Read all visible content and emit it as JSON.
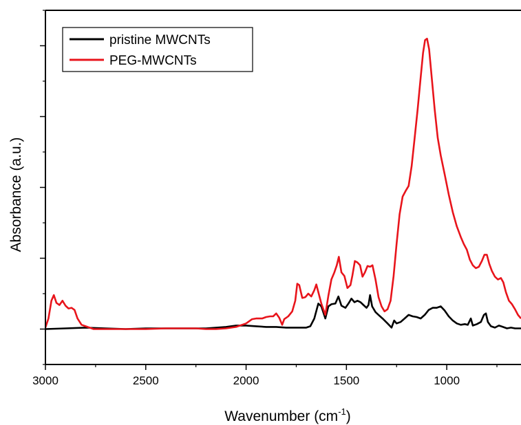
{
  "chart_data": {
    "type": "line",
    "title": "",
    "xlabel": "Wavenumber (cm",
    "xlabel_sup": "-1",
    "xlabel_close": ")",
    "ylabel": "Absorbance (a.u.)",
    "xlim": [
      3000,
      630
    ],
    "ylim": [
      -0.5,
      4.5
    ],
    "x_reversed": true,
    "y_tick_labels_shown": false,
    "x_ticks": [
      {
        "value": 3000,
        "label": "3000"
      },
      {
        "value": 2500,
        "label": "2500"
      },
      {
        "value": 2000,
        "label": "2000"
      },
      {
        "value": 1500,
        "label": "1500"
      },
      {
        "value": 1000,
        "label": "1000"
      }
    ],
    "legend_position": "top-left",
    "series": [
      {
        "name": "pristine MWCNTs",
        "color": "#000000",
        "points": [
          [
            3000,
            0.0
          ],
          [
            2900,
            0.01
          ],
          [
            2800,
            0.02
          ],
          [
            2700,
            0.01
          ],
          [
            2600,
            0.0
          ],
          [
            2500,
            0.01
          ],
          [
            2400,
            0.01
          ],
          [
            2300,
            0.01
          ],
          [
            2200,
            0.01
          ],
          [
            2100,
            0.03
          ],
          [
            2050,
            0.05
          ],
          [
            2000,
            0.05
          ],
          [
            1950,
            0.04
          ],
          [
            1900,
            0.03
          ],
          [
            1850,
            0.03
          ],
          [
            1800,
            0.02
          ],
          [
            1750,
            0.02
          ],
          [
            1700,
            0.02
          ],
          [
            1680,
            0.04
          ],
          [
            1660,
            0.15
          ],
          [
            1640,
            0.36
          ],
          [
            1625,
            0.32
          ],
          [
            1605,
            0.15
          ],
          [
            1590,
            0.32
          ],
          [
            1575,
            0.35
          ],
          [
            1555,
            0.36
          ],
          [
            1540,
            0.46
          ],
          [
            1525,
            0.33
          ],
          [
            1505,
            0.3
          ],
          [
            1490,
            0.36
          ],
          [
            1475,
            0.43
          ],
          [
            1460,
            0.38
          ],
          [
            1445,
            0.4
          ],
          [
            1430,
            0.38
          ],
          [
            1415,
            0.34
          ],
          [
            1400,
            0.3
          ],
          [
            1390,
            0.34
          ],
          [
            1382,
            0.48
          ],
          [
            1372,
            0.32
          ],
          [
            1355,
            0.24
          ],
          [
            1340,
            0.2
          ],
          [
            1320,
            0.15
          ],
          [
            1295,
            0.08
          ],
          [
            1275,
            0.02
          ],
          [
            1262,
            0.12
          ],
          [
            1250,
            0.08
          ],
          [
            1230,
            0.1
          ],
          [
            1210,
            0.15
          ],
          [
            1190,
            0.2
          ],
          [
            1170,
            0.18
          ],
          [
            1150,
            0.17
          ],
          [
            1130,
            0.15
          ],
          [
            1110,
            0.2
          ],
          [
            1090,
            0.27
          ],
          [
            1070,
            0.3
          ],
          [
            1050,
            0.3
          ],
          [
            1030,
            0.32
          ],
          [
            1010,
            0.26
          ],
          [
            990,
            0.18
          ],
          [
            970,
            0.12
          ],
          [
            950,
            0.08
          ],
          [
            930,
            0.06
          ],
          [
            910,
            0.07
          ],
          [
            895,
            0.06
          ],
          [
            880,
            0.15
          ],
          [
            870,
            0.05
          ],
          [
            850,
            0.07
          ],
          [
            830,
            0.1
          ],
          [
            815,
            0.2
          ],
          [
            805,
            0.22
          ],
          [
            795,
            0.1
          ],
          [
            780,
            0.04
          ],
          [
            760,
            0.02
          ],
          [
            740,
            0.05
          ],
          [
            720,
            0.03
          ],
          [
            700,
            0.01
          ],
          [
            680,
            0.02
          ],
          [
            660,
            0.01
          ],
          [
            630,
            0.01
          ]
        ]
      },
      {
        "name": "PEG-MWCNTs",
        "color": "#e8141b",
        "points": [
          [
            3000,
            0.02
          ],
          [
            2985,
            0.15
          ],
          [
            2970,
            0.4
          ],
          [
            2958,
            0.48
          ],
          [
            2945,
            0.37
          ],
          [
            2930,
            0.34
          ],
          [
            2915,
            0.4
          ],
          [
            2900,
            0.33
          ],
          [
            2885,
            0.29
          ],
          [
            2870,
            0.3
          ],
          [
            2855,
            0.27
          ],
          [
            2840,
            0.15
          ],
          [
            2820,
            0.06
          ],
          [
            2800,
            0.04
          ],
          [
            2780,
            0.02
          ],
          [
            2760,
            0.0
          ],
          [
            2700,
            0.0
          ],
          [
            2600,
            0.0
          ],
          [
            2500,
            0.0
          ],
          [
            2400,
            0.01
          ],
          [
            2300,
            0.01
          ],
          [
            2250,
            0.01
          ],
          [
            2200,
            0.0
          ],
          [
            2150,
            0.0
          ],
          [
            2100,
            0.01
          ],
          [
            2050,
            0.03
          ],
          [
            2000,
            0.08
          ],
          [
            1970,
            0.14
          ],
          [
            1950,
            0.15
          ],
          [
            1920,
            0.15
          ],
          [
            1900,
            0.17
          ],
          [
            1880,
            0.18
          ],
          [
            1865,
            0.18
          ],
          [
            1850,
            0.22
          ],
          [
            1835,
            0.16
          ],
          [
            1820,
            0.06
          ],
          [
            1810,
            0.14
          ],
          [
            1790,
            0.18
          ],
          [
            1770,
            0.25
          ],
          [
            1755,
            0.4
          ],
          [
            1745,
            0.64
          ],
          [
            1735,
            0.62
          ],
          [
            1720,
            0.44
          ],
          [
            1705,
            0.45
          ],
          [
            1690,
            0.5
          ],
          [
            1675,
            0.46
          ],
          [
            1660,
            0.55
          ],
          [
            1650,
            0.63
          ],
          [
            1638,
            0.5
          ],
          [
            1625,
            0.36
          ],
          [
            1605,
            0.2
          ],
          [
            1590,
            0.47
          ],
          [
            1575,
            0.7
          ],
          [
            1560,
            0.8
          ],
          [
            1548,
            0.9
          ],
          [
            1538,
            1.02
          ],
          [
            1525,
            0.8
          ],
          [
            1510,
            0.75
          ],
          [
            1495,
            0.58
          ],
          [
            1480,
            0.62
          ],
          [
            1470,
            0.76
          ],
          [
            1458,
            0.96
          ],
          [
            1445,
            0.94
          ],
          [
            1432,
            0.9
          ],
          [
            1420,
            0.74
          ],
          [
            1408,
            0.8
          ],
          [
            1395,
            0.89
          ],
          [
            1382,
            0.88
          ],
          [
            1370,
            0.9
          ],
          [
            1355,
            0.7
          ],
          [
            1340,
            0.45
          ],
          [
            1325,
            0.32
          ],
          [
            1310,
            0.25
          ],
          [
            1295,
            0.28
          ],
          [
            1280,
            0.4
          ],
          [
            1265,
            0.75
          ],
          [
            1250,
            1.2
          ],
          [
            1235,
            1.62
          ],
          [
            1220,
            1.87
          ],
          [
            1205,
            1.95
          ],
          [
            1190,
            2.02
          ],
          [
            1175,
            2.3
          ],
          [
            1160,
            2.7
          ],
          [
            1145,
            3.1
          ],
          [
            1130,
            3.55
          ],
          [
            1118,
            3.9
          ],
          [
            1108,
            4.08
          ],
          [
            1098,
            4.1
          ],
          [
            1088,
            3.95
          ],
          [
            1075,
            3.55
          ],
          [
            1060,
            3.1
          ],
          [
            1045,
            2.7
          ],
          [
            1030,
            2.45
          ],
          [
            1010,
            2.18
          ],
          [
            990,
            1.9
          ],
          [
            970,
            1.65
          ],
          [
            950,
            1.45
          ],
          [
            930,
            1.3
          ],
          [
            915,
            1.2
          ],
          [
            900,
            1.12
          ],
          [
            885,
            0.98
          ],
          [
            870,
            0.9
          ],
          [
            855,
            0.86
          ],
          [
            840,
            0.88
          ],
          [
            825,
            0.96
          ],
          [
            812,
            1.05
          ],
          [
            800,
            1.05
          ],
          [
            788,
            0.92
          ],
          [
            775,
            0.82
          ],
          [
            760,
            0.74
          ],
          [
            745,
            0.7
          ],
          [
            730,
            0.72
          ],
          [
            718,
            0.66
          ],
          [
            705,
            0.52
          ],
          [
            690,
            0.4
          ],
          [
            675,
            0.35
          ],
          [
            660,
            0.28
          ],
          [
            645,
            0.2
          ],
          [
            630,
            0.15
          ]
        ]
      }
    ]
  }
}
